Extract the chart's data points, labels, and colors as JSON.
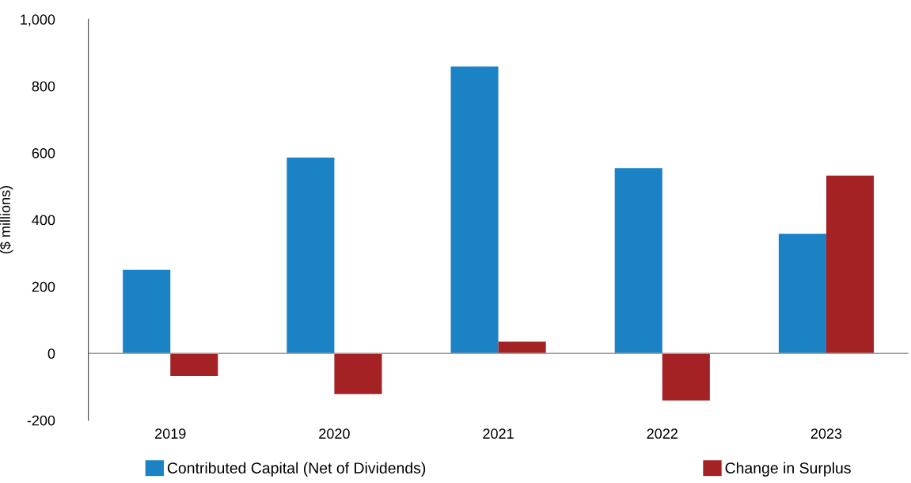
{
  "chart_data": {
    "type": "bar",
    "ylabel": "($ millions)",
    "categories": [
      "2019",
      "2020",
      "2021",
      "2022",
      "2023"
    ],
    "series": [
      {
        "name": "Contributed Capital (Net of Dividends)",
        "color": "#1b82c5",
        "values": [
          250,
          586,
          859,
          555,
          358
        ]
      },
      {
        "name": "Change in Surplus",
        "color": "#a52224",
        "values": [
          -68,
          -122,
          35,
          -141,
          532
        ]
      }
    ],
    "ylim": [
      -200,
      1000
    ],
    "yticks": [
      {
        "value": -200,
        "label": "-200"
      },
      0,
      200,
      400,
      600,
      800,
      {
        "value": 1000,
        "label": "1,000"
      }
    ],
    "ref_lines": [
      {
        "axis": "y",
        "value": 0,
        "color": "#a0a0a0"
      }
    ],
    "grid": false,
    "legend": "bottom"
  }
}
